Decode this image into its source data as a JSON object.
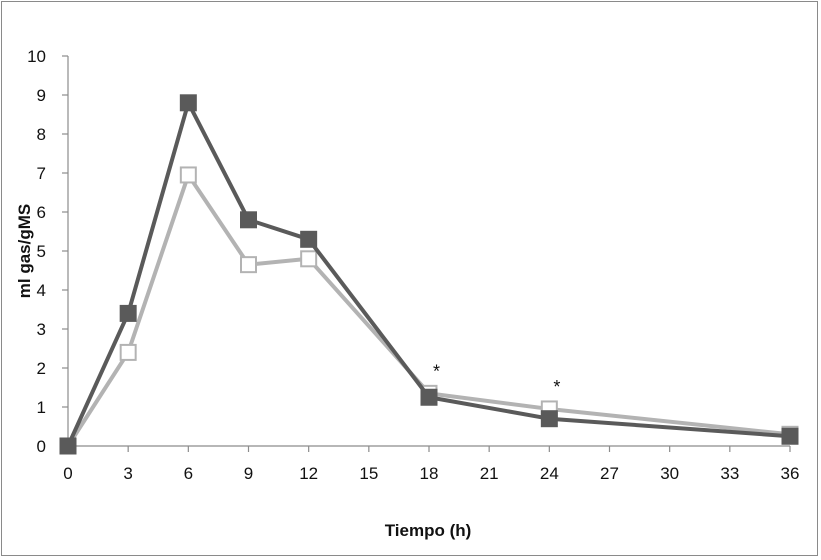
{
  "chart_data": {
    "type": "line",
    "title": "",
    "xlabel": "Tiempo (h)",
    "ylabel": "ml gas/gMS",
    "xlim": [
      0,
      36
    ],
    "ylim": [
      0,
      10
    ],
    "xticks": [
      0,
      3,
      6,
      9,
      12,
      15,
      18,
      21,
      24,
      27,
      30,
      33,
      36
    ],
    "yticks": [
      0,
      1,
      2,
      3,
      4,
      5,
      6,
      7,
      8,
      9,
      10
    ],
    "grid": false,
    "legend": "none",
    "series": [
      {
        "name": "filled-squares",
        "color": "#5a5a5a",
        "marker": "filled-square",
        "x": [
          0,
          3,
          6,
          9,
          12,
          18,
          24,
          36
        ],
        "y": [
          0,
          3.4,
          8.8,
          5.8,
          5.3,
          1.25,
          0.7,
          0.25
        ]
      },
      {
        "name": "open-squares",
        "color": "#b3b3b3",
        "marker": "open-square",
        "x": [
          0,
          3,
          6,
          9,
          12,
          18,
          24,
          36
        ],
        "y": [
          0,
          2.4,
          6.95,
          4.65,
          4.8,
          1.35,
          0.95,
          0.3
        ]
      }
    ],
    "annotations": [
      {
        "text": "*",
        "x": 18,
        "y": 1.35
      },
      {
        "text": "*",
        "x": 24,
        "y": 0.95
      }
    ]
  }
}
